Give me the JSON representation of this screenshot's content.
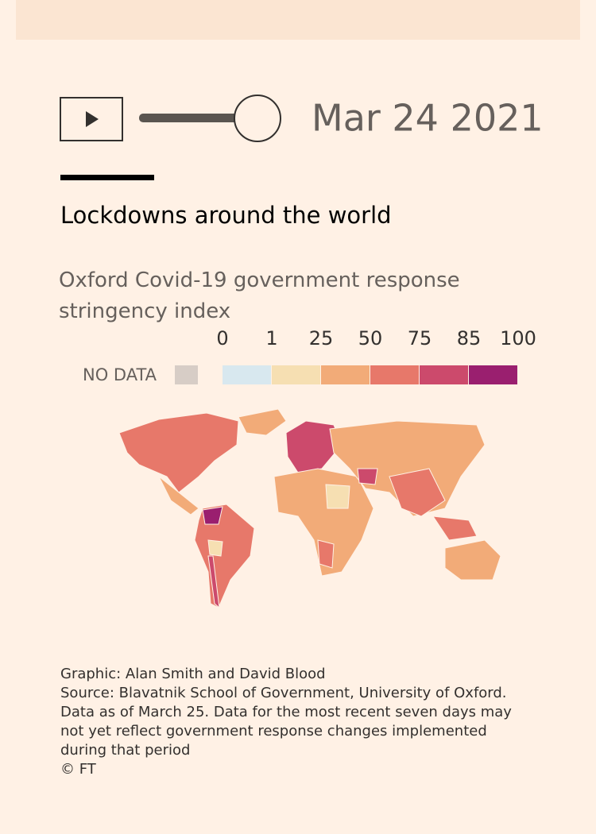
{
  "player": {
    "date": "Mar 24 2021"
  },
  "header": {
    "title": "Lockdowns around the world",
    "subtitle": "Oxford Covid-19 government response stringency index"
  },
  "legend": {
    "no_data_label": "NO DATA",
    "no_data_color": "#d7cdc6",
    "ticks": [
      0,
      1,
      25,
      50,
      75,
      85,
      100
    ],
    "colors": [
      "#d8e8ef",
      "#f6dfb2",
      "#f2ab78",
      "#e7786a",
      "#cc4a6c",
      "#9a1f6f"
    ]
  },
  "footer": {
    "lines": [
      "Graphic: Alan Smith and David Blood",
      "Source: Blavatnik School of Government, University of Oxford.",
      "Data as of March 25. Data for the most recent seven days may",
      "not yet reflect government response changes implemented",
      "during that period",
      "© FT"
    ]
  }
}
